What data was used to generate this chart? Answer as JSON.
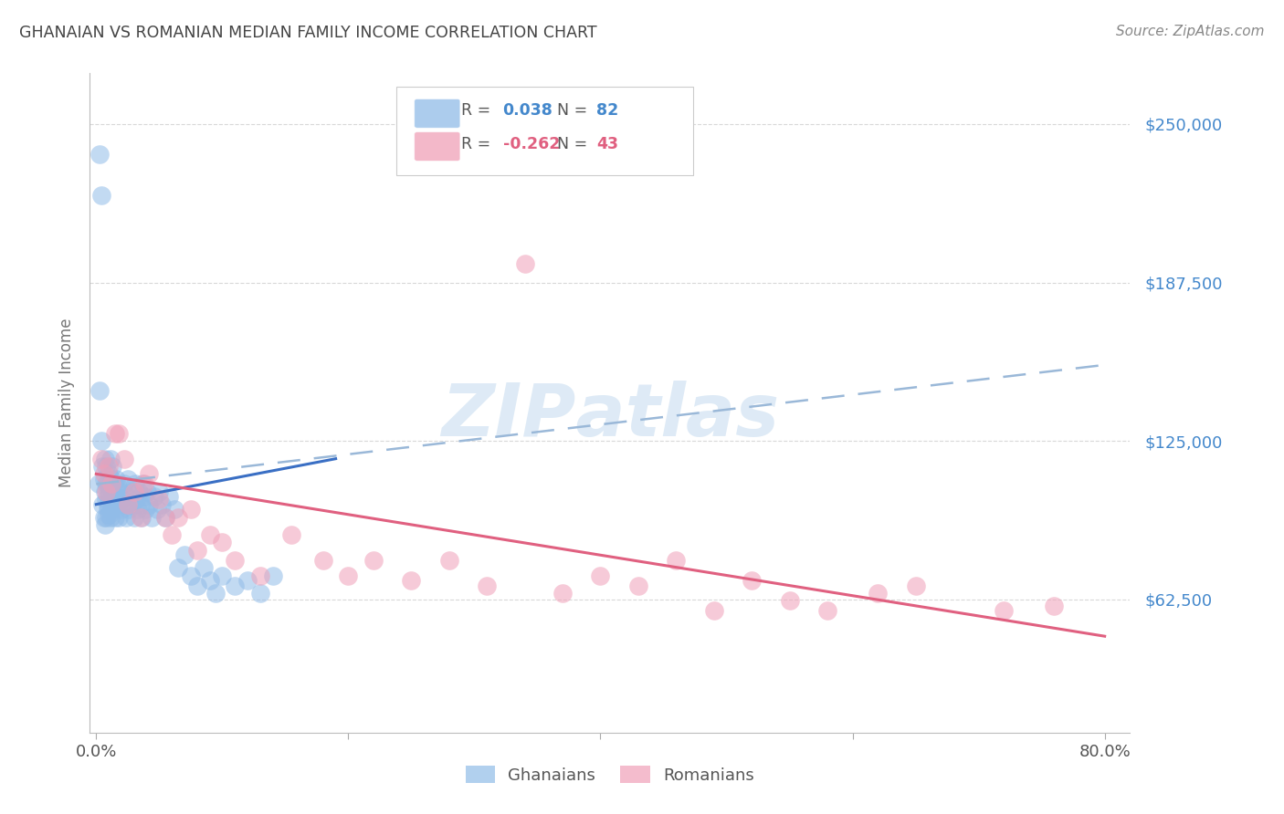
{
  "title": "GHANAIAN VS ROMANIAN MEDIAN FAMILY INCOME CORRELATION CHART",
  "source": "Source: ZipAtlas.com",
  "ylabel": "Median Family Income",
  "ytick_labels": [
    "$250,000",
    "$187,500",
    "$125,000",
    "$62,500"
  ],
  "ytick_values": [
    250000,
    187500,
    125000,
    62500
  ],
  "ymin": 10000,
  "ymax": 270000,
  "xmin": -0.005,
  "xmax": 0.82,
  "ghanaian_color": "#91bce8",
  "romanian_color": "#f0a0b8",
  "trend_blue_solid_color": "#3a6fc4",
  "trend_pink_solid_color": "#e06080",
  "trend_dashed_color": "#9ab8d8",
  "background": "#ffffff",
  "grid_color": "#c8c8c8",
  "title_color": "#444444",
  "axis_label_color": "#777777",
  "ytick_color": "#4488cc",
  "source_color": "#888888",
  "legend_r1_color": "#4488cc",
  "legend_r2_color": "#e06080",
  "watermark_color": "#c8ddf0",
  "ghanaian_x": [
    0.002,
    0.003,
    0.004,
    0.005,
    0.005,
    0.006,
    0.006,
    0.007,
    0.007,
    0.007,
    0.008,
    0.008,
    0.008,
    0.008,
    0.009,
    0.009,
    0.009,
    0.01,
    0.01,
    0.01,
    0.01,
    0.011,
    0.011,
    0.011,
    0.012,
    0.012,
    0.012,
    0.013,
    0.013,
    0.014,
    0.014,
    0.015,
    0.015,
    0.016,
    0.016,
    0.017,
    0.018,
    0.019,
    0.02,
    0.021,
    0.022,
    0.023,
    0.024,
    0.025,
    0.025,
    0.026,
    0.027,
    0.028,
    0.03,
    0.031,
    0.032,
    0.033,
    0.034,
    0.035,
    0.036,
    0.037,
    0.038,
    0.039,
    0.04,
    0.042,
    0.044,
    0.046,
    0.048,
    0.05,
    0.052,
    0.055,
    0.058,
    0.062,
    0.065,
    0.07,
    0.075,
    0.08,
    0.085,
    0.09,
    0.095,
    0.1,
    0.11,
    0.12,
    0.13,
    0.14,
    0.003,
    0.004
  ],
  "ghanaian_y": [
    108000,
    145000,
    125000,
    100000,
    115000,
    95000,
    110000,
    105000,
    118000,
    92000,
    102000,
    108000,
    95000,
    115000,
    100000,
    108000,
    98000,
    105000,
    112000,
    96000,
    103000,
    107000,
    95000,
    118000,
    102000,
    110000,
    98000,
    105000,
    115000,
    100000,
    108000,
    103000,
    95000,
    110000,
    100000,
    107000,
    95000,
    105000,
    98000,
    102000,
    108000,
    100000,
    95000,
    103000,
    110000,
    98000,
    105000,
    100000,
    95000,
    108000,
    102000,
    98000,
    105000,
    100000,
    95000,
    108000,
    103000,
    98000,
    105000,
    100000,
    95000,
    103000,
    98000,
    105000,
    100000,
    95000,
    103000,
    98000,
    75000,
    80000,
    72000,
    68000,
    75000,
    70000,
    65000,
    72000,
    68000,
    70000,
    65000,
    72000,
    238000,
    222000
  ],
  "romanian_x": [
    0.004,
    0.006,
    0.008,
    0.01,
    0.012,
    0.015,
    0.018,
    0.022,
    0.025,
    0.03,
    0.035,
    0.038,
    0.042,
    0.05,
    0.055,
    0.06,
    0.065,
    0.075,
    0.08,
    0.09,
    0.1,
    0.11,
    0.13,
    0.155,
    0.18,
    0.2,
    0.22,
    0.25,
    0.28,
    0.31,
    0.34,
    0.37,
    0.4,
    0.43,
    0.46,
    0.49,
    0.52,
    0.55,
    0.58,
    0.62,
    0.65,
    0.72,
    0.76
  ],
  "romanian_y": [
    118000,
    112000,
    105000,
    115000,
    108000,
    128000,
    128000,
    118000,
    100000,
    105000,
    95000,
    108000,
    112000,
    102000,
    95000,
    88000,
    95000,
    98000,
    82000,
    88000,
    85000,
    78000,
    72000,
    88000,
    78000,
    72000,
    78000,
    70000,
    78000,
    68000,
    195000,
    65000,
    72000,
    68000,
    78000,
    58000,
    70000,
    62000,
    58000,
    65000,
    68000,
    58000,
    60000
  ],
  "blue_trend_x": [
    0.0,
    0.19
  ],
  "blue_trend_y": [
    100000,
    118000
  ],
  "dashed_trend_x": [
    0.0,
    0.8
  ],
  "dashed_trend_y": [
    108000,
    155000
  ],
  "pink_trend_x": [
    0.0,
    0.8
  ],
  "pink_trend_y": [
    112000,
    48000
  ]
}
